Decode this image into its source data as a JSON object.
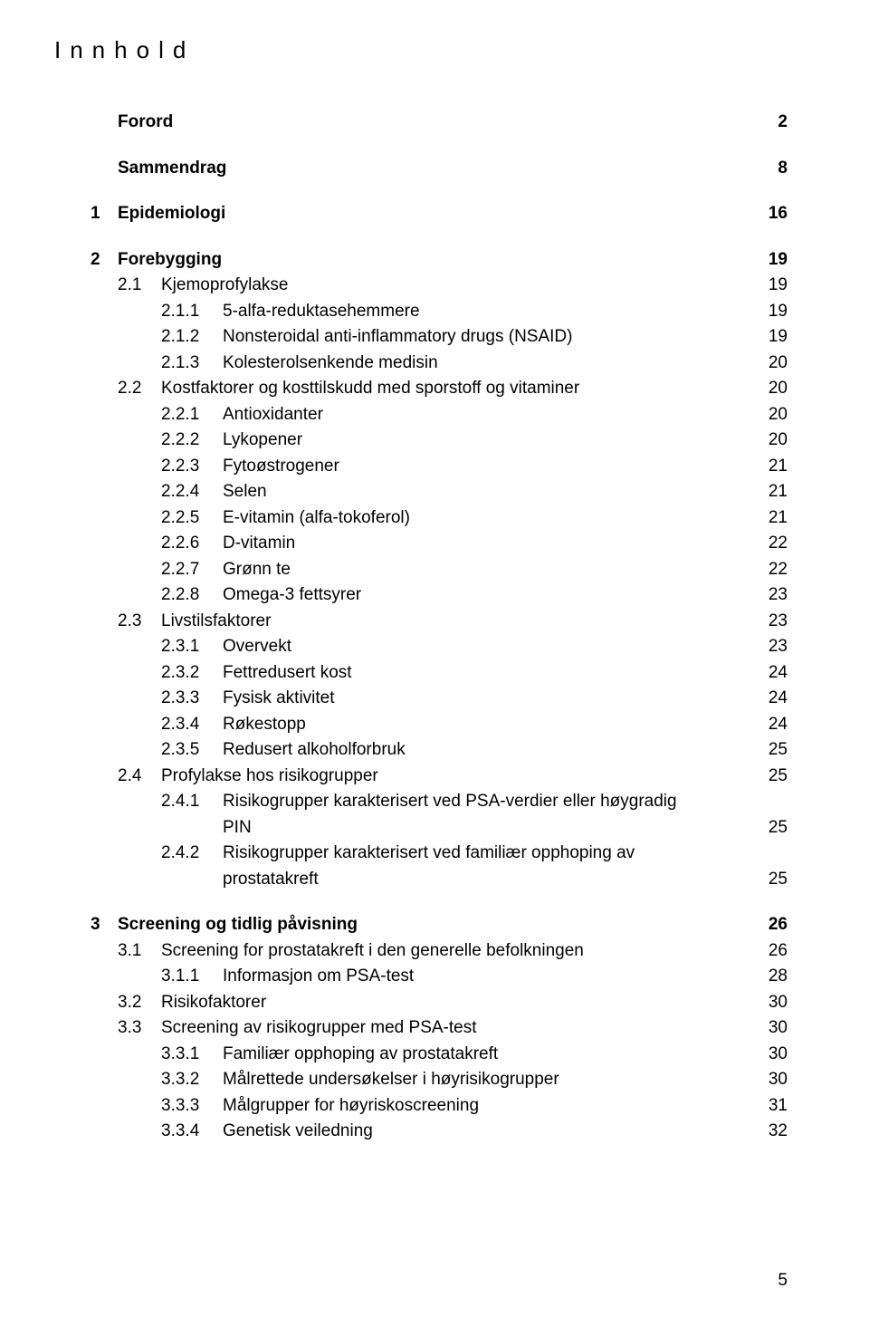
{
  "page_title": "Innhold",
  "page_number": "5",
  "sections": {
    "forord": {
      "num": "",
      "label": "Forord",
      "pg": "2"
    },
    "sammendrag": {
      "num": "",
      "label": "Sammendrag",
      "pg": "8"
    },
    "s1": {
      "num": "1",
      "label": "Epidemiologi",
      "pg": "16"
    },
    "s2": {
      "num": "2",
      "label": "Forebygging",
      "pg": "19"
    },
    "s2_1": {
      "num": "2.1",
      "label": "Kjemoprofylakse",
      "pg": "19"
    },
    "s2_1_1": {
      "num": "2.1.1",
      "label": "5-alfa-reduktasehemmere",
      "pg": "19"
    },
    "s2_1_2": {
      "num": "2.1.2",
      "label": "Nonsteroidal anti-inflammatory drugs (NSAID)",
      "pg": "19"
    },
    "s2_1_3": {
      "num": "2.1.3",
      "label": "Kolesterolsenkende medisin",
      "pg": "20"
    },
    "s2_2": {
      "num": "2.2",
      "label": "Kostfaktorer og kosttilskudd med sporstoff og vitaminer",
      "pg": "20"
    },
    "s2_2_1": {
      "num": "2.2.1",
      "label": "Antioxidanter",
      "pg": "20"
    },
    "s2_2_2": {
      "num": "2.2.2",
      "label": "Lykopener",
      "pg": "20"
    },
    "s2_2_3": {
      "num": "2.2.3",
      "label": "Fytoøstrogener",
      "pg": "21"
    },
    "s2_2_4": {
      "num": "2.2.4",
      "label": "Selen",
      "pg": "21"
    },
    "s2_2_5": {
      "num": "2.2.5",
      "label": "E-vitamin (alfa-tokoferol)",
      "pg": "21"
    },
    "s2_2_6": {
      "num": "2.2.6",
      "label": "D-vitamin",
      "pg": "22"
    },
    "s2_2_7": {
      "num": "2.2.7",
      "label": "Grønn te",
      "pg": "22"
    },
    "s2_2_8": {
      "num": "2.2.8",
      "label": "Omega-3 fettsyrer",
      "pg": "23"
    },
    "s2_3": {
      "num": "2.3",
      "label": "Livstilsfaktorer",
      "pg": "23"
    },
    "s2_3_1": {
      "num": "2.3.1",
      "label": "Overvekt",
      "pg": "23"
    },
    "s2_3_2": {
      "num": "2.3.2",
      "label": "Fettredusert kost",
      "pg": "24"
    },
    "s2_3_3": {
      "num": "2.3.3",
      "label": "Fysisk aktivitet",
      "pg": "24"
    },
    "s2_3_4": {
      "num": "2.3.4",
      "label": "Røkestopp",
      "pg": "24"
    },
    "s2_3_5": {
      "num": "2.3.5",
      "label": "Redusert alkoholforbruk",
      "pg": "25"
    },
    "s2_4": {
      "num": "2.4",
      "label": "Profylakse hos risikogrupper",
      "pg": "25"
    },
    "s2_4_1_a": {
      "num": "2.4.1",
      "label": "Risikogrupper karakterisert ved PSA-verdier eller høygradig"
    },
    "s2_4_1_b": {
      "label": "PIN",
      "pg": "25"
    },
    "s2_4_2_a": {
      "num": "2.4.2",
      "label": "Risikogrupper karakterisert ved familiær opphoping av"
    },
    "s2_4_2_b": {
      "label": "prostatakreft",
      "pg": "25"
    },
    "s3": {
      "num": "3",
      "label": "Screening og tidlig påvisning",
      "pg": "26"
    },
    "s3_1": {
      "num": "3.1",
      "label": "Screening for prostatakreft i den generelle befolkningen",
      "pg": "26"
    },
    "s3_1_1": {
      "num": "3.1.1",
      "label": "Informasjon om PSA-test",
      "pg": "28"
    },
    "s3_2": {
      "num": "3.2",
      "label": "Risikofaktorer",
      "pg": "30"
    },
    "s3_3": {
      "num": "3.3",
      "label": "Screening av risikogrupper med PSA-test",
      "pg": "30"
    },
    "s3_3_1": {
      "num": "3.3.1",
      "label": "Familiær opphoping av prostatakreft",
      "pg": "30"
    },
    "s3_3_2": {
      "num": "3.3.2",
      "label": "Målrettede undersøkelser i høyrisikogrupper",
      "pg": "30"
    },
    "s3_3_3": {
      "num": "3.3.3",
      "label": "Målgrupper for høyriskoscreening",
      "pg": "31"
    },
    "s3_3_4": {
      "num": "3.3.4",
      "label": "Genetisk veiledning",
      "pg": "32"
    }
  }
}
